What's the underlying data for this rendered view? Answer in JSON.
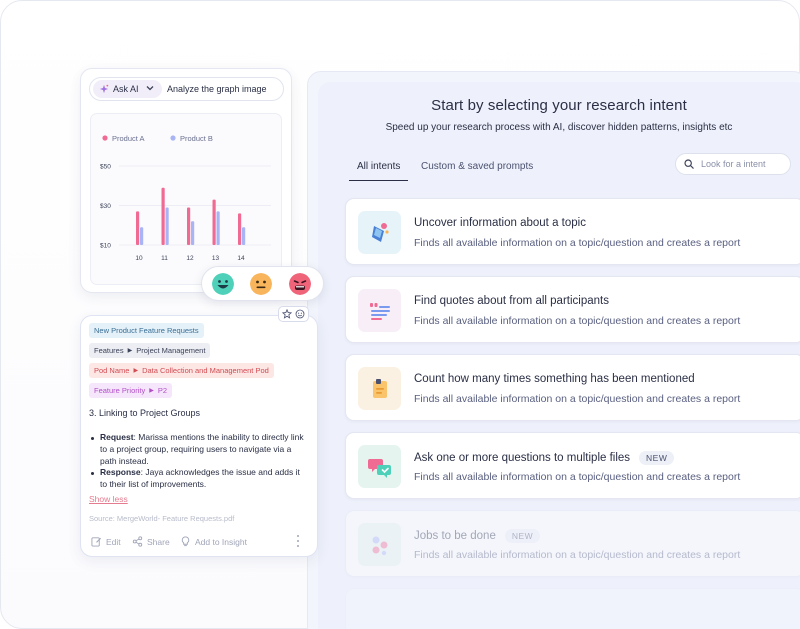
{
  "ask_ai": {
    "button_label": "Ask AI",
    "prompt_text": "Analyze the graph image"
  },
  "chart_data": {
    "type": "bar",
    "categories": [
      "10",
      "11",
      "12",
      "13",
      "14"
    ],
    "series": [
      {
        "name": "Product A",
        "values": [
          27,
          39,
          29,
          33,
          26
        ],
        "color": "#f06b93"
      },
      {
        "name": "Product B",
        "values": [
          19,
          29,
          22,
          27,
          19
        ],
        "color": "#a8b4f4"
      }
    ],
    "y_ticks": [
      "$50",
      "$30",
      "$10"
    ],
    "y_tick_values": [
      50,
      30,
      10
    ],
    "ylim": [
      10,
      50
    ],
    "grid": true,
    "legend_position": "top-left"
  },
  "feedback": {
    "icons": [
      "happy-face-icon",
      "neutral-face-icon",
      "sad-face-icon"
    ],
    "colors": [
      "#4fd1b9",
      "#f9b55b",
      "#f0647a"
    ]
  },
  "insight": {
    "tags": [
      {
        "text": "New Product Feature Requests",
        "parts": [],
        "bg": "#e4f1f9",
        "fg": "#3a6f94"
      },
      {
        "text": "",
        "parts": [
          "Features",
          "Project Management"
        ],
        "bg": "#eceef3",
        "fg": "#3c4258"
      },
      {
        "text": "",
        "parts": [
          "Pod Name",
          "Data Collection and Management Pod"
        ],
        "bg": "#fde7e5",
        "fg": "#d04b52"
      },
      {
        "text": "",
        "parts": [
          "Feature Priority",
          "P2"
        ],
        "bg": "#f6e6fb",
        "fg": "#b04fc6"
      }
    ],
    "heading": "3. Linking to Project Groups",
    "bullets": [
      {
        "label": "Request",
        "text": ": Marissa mentions the inability to directly link to a project group, requiring users to navigate via a path instead."
      },
      {
        "label": "Response",
        "text": ": Jaya acknowledges the issue and adds it to their list of improvements."
      }
    ],
    "show_less": "Show less",
    "source": "Source: MergeWorld-  Feature Requests.pdf",
    "actions": {
      "edit": "Edit",
      "share": "Share",
      "add_to_insight": "Add to Insight"
    }
  },
  "research": {
    "title": "Start by selecting your research intent",
    "subtitle": "Speed up your research process with AI, discover hidden patterns, insights etc",
    "tabs": [
      {
        "label": "All intents",
        "active": true
      },
      {
        "label": "Custom & saved prompts",
        "active": false
      }
    ],
    "search_placeholder": "Look for a intent",
    "cards": [
      {
        "title": "Uncover information about a topic",
        "desc": "Finds all available information on a topic/question and creates a report",
        "badge": "",
        "icon": "bulb-tag-icon",
        "icon_bg": "#e6f4fa"
      },
      {
        "title": "Find quotes about from all participants",
        "desc": "Finds all available information on a topic/question and creates a report",
        "badge": "",
        "icon": "quote-lines-icon",
        "icon_bg": "#f7eef7"
      },
      {
        "title": "Count how many times something has been mentioned",
        "desc": "Finds all available information on a topic/question and creates a report",
        "badge": "",
        "icon": "sticky-note-icon",
        "icon_bg": "#fbf1e2"
      },
      {
        "title": "Ask one or more questions to multiple files",
        "desc": "Finds all available information on a topic/question and creates a report",
        "badge": "NEW",
        "icon": "chat-bubbles-icon",
        "icon_bg": "#e5f4ef"
      },
      {
        "title": "Jobs to be done",
        "desc": "Finds all available information on a topic/question and creates a report",
        "badge": "NEW",
        "icon": "dots-cluster-icon",
        "icon_bg": "#e5f4ef"
      }
    ]
  }
}
